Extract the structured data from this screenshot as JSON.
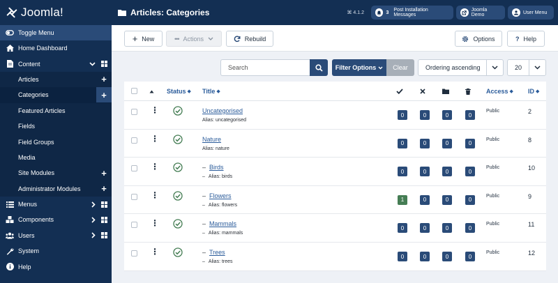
{
  "app": {
    "brand": "Joomla!"
  },
  "header": {
    "title": "Articles: Categories",
    "version": "⌘ 4.1.2",
    "notifications_count": "3",
    "post_install": "Post Installation Messages",
    "site_name": "Joomla Demo",
    "user_menu": "User Menu"
  },
  "sidebar": {
    "toggle": "Toggle Menu",
    "home": "Home Dashboard",
    "content": "Content",
    "content_items": [
      {
        "label": "Articles"
      },
      {
        "label": "Categories"
      },
      {
        "label": "Featured Articles"
      },
      {
        "label": "Fields"
      },
      {
        "label": "Field Groups"
      },
      {
        "label": "Media"
      },
      {
        "label": "Site Modules"
      },
      {
        "label": "Administrator Modules"
      }
    ],
    "menus": "Menus",
    "components": "Components",
    "users": "Users",
    "system": "System",
    "help": "Help"
  },
  "toolbar": {
    "new_label": "New",
    "actions_label": "Actions",
    "rebuild_label": "Rebuild",
    "options_label": "Options",
    "help_label": "Help"
  },
  "filters": {
    "search_placeholder": "Search",
    "filter_options": "Filter Options",
    "clear": "Clear",
    "ordering": "Ordering ascending",
    "limit": "20"
  },
  "table": {
    "headers": {
      "status": "Status",
      "title": "Title",
      "access": "Access",
      "id": "ID"
    },
    "rows": [
      {
        "title": "Uncategorised",
        "alias": "Alias: uncategorised",
        "child": false,
        "published": "0",
        "unpublished": "0",
        "archived": "0",
        "trashed": "0",
        "access": "Public",
        "id": "2"
      },
      {
        "title": "Nature",
        "alias": "Alias: nature",
        "child": false,
        "published": "0",
        "unpublished": "0",
        "archived": "0",
        "trashed": "0",
        "access": "Public",
        "id": "8"
      },
      {
        "title": "Birds",
        "alias": "Alias: birds",
        "child": true,
        "published": "0",
        "unpublished": "0",
        "archived": "0",
        "trashed": "0",
        "access": "Public",
        "id": "10"
      },
      {
        "title": "Flowers",
        "alias": "Alias: flowers",
        "child": true,
        "published": "1",
        "unpublished": "0",
        "archived": "0",
        "trashed": "0",
        "access": "Public",
        "id": "9"
      },
      {
        "title": "Mammals",
        "alias": "Alias: mammals",
        "child": true,
        "published": "0",
        "unpublished": "0",
        "archived": "0",
        "trashed": "0",
        "access": "Public",
        "id": "11"
      },
      {
        "title": "Trees",
        "alias": "Alias: trees",
        "child": true,
        "published": "0",
        "unpublished": "0",
        "archived": "0",
        "trashed": "0",
        "access": "Public",
        "id": "12"
      }
    ]
  },
  "colors": {
    "navy": "#132f53",
    "accent": "#2a4b78",
    "link": "#2a5b9a",
    "published_green": "#457d54"
  }
}
